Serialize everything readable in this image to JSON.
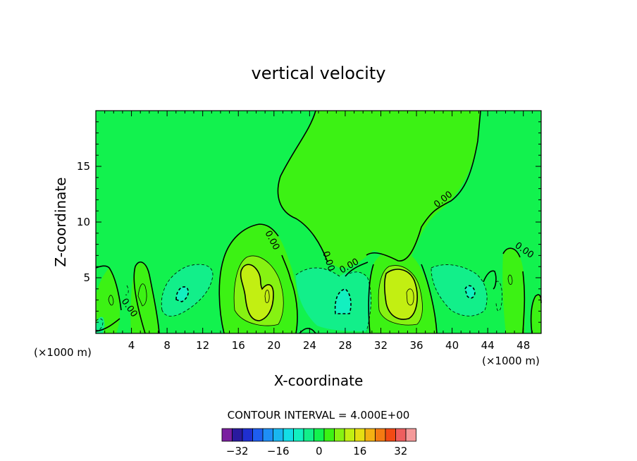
{
  "chart_data": {
    "type": "contour",
    "title": "vertical velocity",
    "xlabel": "X-coordinate",
    "ylabel": "Z-coordinate",
    "x_unit_left": "(×1000 m)",
    "x_unit_right": "(×1000 m)",
    "xlim": [
      0,
      50
    ],
    "ylim": [
      0,
      20
    ],
    "xticks": [
      4,
      8,
      12,
      16,
      20,
      24,
      28,
      32,
      36,
      40,
      44,
      48
    ],
    "yticks": [
      5,
      10,
      15
    ],
    "contour_interval_label": "CONTOUR INTERVAL = 4.000E+00",
    "zero_contour_label": "0.00",
    "colorbar": {
      "tick_values": [
        -32,
        -16,
        0,
        16,
        32
      ],
      "tick_labels": [
        "−32",
        "−16",
        "0",
        "16",
        "32"
      ],
      "levels": [
        -36,
        -32,
        -28,
        -24,
        -20,
        -16,
        -12,
        -8,
        -4,
        0,
        4,
        8,
        12,
        16,
        20,
        24,
        28,
        32,
        36
      ],
      "colors": [
        "#7a1fa0",
        "#2a1a9e",
        "#1f2fd0",
        "#1e5ef0",
        "#1e8ef6",
        "#19b6f0",
        "#13dde6",
        "#12f0c0",
        "#12ef8a",
        "#12f24e",
        "#3cf214",
        "#86f212",
        "#c2ef12",
        "#e6de12",
        "#f4b012",
        "#f47a12",
        "#f24a14",
        "#ee5e5e",
        "#f49a9a"
      ]
    },
    "features": [
      {
        "kind": "updraft",
        "center_x": 18,
        "center_z": 3.5,
        "max_w": 12
      },
      {
        "kind": "updraft",
        "center_x": 34,
        "center_z": 3.5,
        "max_w": 12
      },
      {
        "kind": "downdraft",
        "center_x": 10,
        "center_z": 3.5,
        "min_w": -8
      },
      {
        "kind": "downdraft",
        "center_x": 28,
        "center_z": 3,
        "min_w": -8
      },
      {
        "kind": "downdraft",
        "center_x": 42,
        "center_z": 4,
        "min_w": -8
      }
    ]
  },
  "colors": {
    "background_field": "#12f24e",
    "region_0_4": "#3cf214",
    "region_4_8": "#86f212",
    "region_8_12": "#c2ef12",
    "region_neg4_0": "#12ef8a",
    "region_neg8_neg4": "#12f0c0"
  }
}
